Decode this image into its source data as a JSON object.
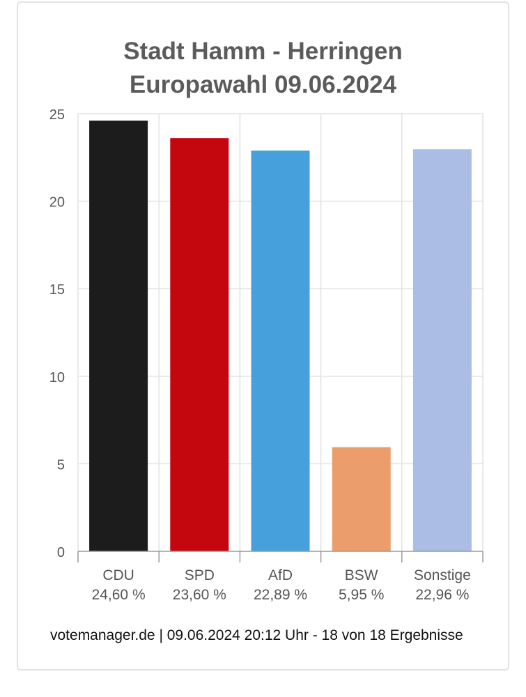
{
  "title_line1": "Stadt Hamm - Herringen",
  "title_line2": "Europawahl 09.06.2024",
  "footer": "votemanager.de | 09.06.2024 20:12 Uhr - 18 von 18 Ergebnisse",
  "chart_data": {
    "type": "bar",
    "title": "Stadt Hamm - Herringen Europawahl 09.06.2024",
    "categories": [
      "CDU",
      "SPD",
      "AfD",
      "BSW",
      "Sonstige"
    ],
    "values": [
      24.6,
      23.6,
      22.89,
      5.95,
      22.96
    ],
    "value_labels": [
      "24,60 %",
      "23,60 %",
      "22,89 %",
      "5,95 %",
      "22,96 %"
    ],
    "colors": [
      "#1c1c1c",
      "#c4060f",
      "#45a0dc",
      "#eb9d6b",
      "#abbde5"
    ],
    "yticks": [
      0,
      5,
      10,
      15,
      20,
      25
    ],
    "ylim": [
      0,
      25
    ],
    "grid": true,
    "xlabel": "",
    "ylabel": ""
  }
}
